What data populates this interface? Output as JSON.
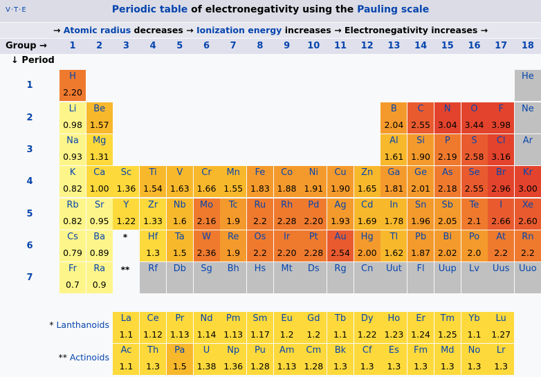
{
  "nav": {
    "v": "V",
    "t": "T",
    "e": "E"
  },
  "title": {
    "link": "Periodic table",
    "rest": " of electronegativity using the ",
    "link2": "Pauling scale"
  },
  "subtitle": {
    "a1": "→ ",
    "atomic": "Atomic radius",
    "a2": " decreases → ",
    "ion": "Ionization energy",
    "a3": " increases → Electronegativity increases →"
  },
  "group_label": "Group →",
  "groups": [
    "1",
    "2",
    "3",
    "4",
    "5",
    "6",
    "7",
    "8",
    "9",
    "10",
    "11",
    "12",
    "13",
    "14",
    "15",
    "16",
    "17",
    "18"
  ],
  "period_label": "↓ Period",
  "periods": [
    "1",
    "2",
    "3",
    "4",
    "5",
    "6",
    "7"
  ],
  "colors": {
    "header_bg": "#dcdce6",
    "lowest": "#fef58a",
    "low": "#fdd93c",
    "mid": "#f8b82c",
    "midhigh": "#f49a2c",
    "high": "#ef7a2e",
    "higher": "#e95b2f",
    "highest": "#e3432c",
    "none": "#c0c0c0"
  },
  "elements": [
    [
      "H",
      "2.20",
      1,
      1
    ],
    [
      "He",
      "",
      1,
      18
    ],
    [
      "Li",
      "0.98",
      2,
      1
    ],
    [
      "Be",
      "1.57",
      2,
      2
    ],
    [
      "B",
      "2.04",
      2,
      13
    ],
    [
      "C",
      "2.55",
      2,
      14
    ],
    [
      "N",
      "3.04",
      2,
      15
    ],
    [
      "O",
      "3.44",
      2,
      16
    ],
    [
      "F",
      "3.98",
      2,
      17
    ],
    [
      "Ne",
      "",
      2,
      18
    ],
    [
      "Na",
      "0.93",
      3,
      1
    ],
    [
      "Mg",
      "1.31",
      3,
      2
    ],
    [
      "Al",
      "1.61",
      3,
      13
    ],
    [
      "Si",
      "1.90",
      3,
      14
    ],
    [
      "P",
      "2.19",
      3,
      15
    ],
    [
      "S",
      "2.58",
      3,
      16
    ],
    [
      "Cl",
      "3.16",
      3,
      17
    ],
    [
      "Ar",
      "",
      3,
      18
    ],
    [
      "K",
      "0.82",
      4,
      1
    ],
    [
      "Ca",
      "1.00",
      4,
      2
    ],
    [
      "Sc",
      "1.36",
      4,
      3
    ],
    [
      "Ti",
      "1.54",
      4,
      4
    ],
    [
      "V",
      "1.63",
      4,
      5
    ],
    [
      "Cr",
      "1.66",
      4,
      6
    ],
    [
      "Mn",
      "1.55",
      4,
      7
    ],
    [
      "Fe",
      "1.83",
      4,
      8
    ],
    [
      "Co",
      "1.88",
      4,
      9
    ],
    [
      "Ni",
      "1.91",
      4,
      10
    ],
    [
      "Cu",
      "1.90",
      4,
      11
    ],
    [
      "Zn",
      "1.65",
      4,
      12
    ],
    [
      "Ga",
      "1.81",
      4,
      13
    ],
    [
      "Ge",
      "2.01",
      4,
      14
    ],
    [
      "As",
      "2.18",
      4,
      15
    ],
    [
      "Se",
      "2.55",
      4,
      16
    ],
    [
      "Br",
      "2.96",
      4,
      17
    ],
    [
      "Kr",
      "3.00",
      4,
      18
    ],
    [
      "Rb",
      "0.82",
      5,
      1
    ],
    [
      "Sr",
      "0.95",
      5,
      2
    ],
    [
      "Y",
      "1.22",
      5,
      3
    ],
    [
      "Zr",
      "1.33",
      5,
      4
    ],
    [
      "Nb",
      "1.6",
      5,
      5
    ],
    [
      "Mo",
      "2.16",
      5,
      6
    ],
    [
      "Tc",
      "1.9",
      5,
      7
    ],
    [
      "Ru",
      "2.2",
      5,
      8
    ],
    [
      "Rh",
      "2.28",
      5,
      9
    ],
    [
      "Pd",
      "2.20",
      5,
      10
    ],
    [
      "Ag",
      "1.93",
      5,
      11
    ],
    [
      "Cd",
      "1.69",
      5,
      12
    ],
    [
      "In",
      "1.78",
      5,
      13
    ],
    [
      "Sn",
      "1.96",
      5,
      14
    ],
    [
      "Sb",
      "2.05",
      5,
      15
    ],
    [
      "Te",
      "2.1",
      5,
      16
    ],
    [
      "I",
      "2.66",
      5,
      17
    ],
    [
      "Xe",
      "2.60",
      5,
      18
    ],
    [
      "Cs",
      "0.79",
      6,
      1
    ],
    [
      "Ba",
      "0.89",
      6,
      2
    ],
    [
      "Hf",
      "1.3",
      6,
      4
    ],
    [
      "Ta",
      "1.5",
      6,
      5
    ],
    [
      "W",
      "2.36",
      6,
      6
    ],
    [
      "Re",
      "1.9",
      6,
      7
    ],
    [
      "Os",
      "2.2",
      6,
      8
    ],
    [
      "Ir",
      "2.20",
      6,
      9
    ],
    [
      "Pt",
      "2.28",
      6,
      10
    ],
    [
      "Au",
      "2.54",
      6,
      11
    ],
    [
      "Hg",
      "2.00",
      6,
      12
    ],
    [
      "Tl",
      "1.62",
      6,
      13
    ],
    [
      "Pb",
      "1.87",
      6,
      14
    ],
    [
      "Bi",
      "2.02",
      6,
      15
    ],
    [
      "Po",
      "2.0",
      6,
      16
    ],
    [
      "At",
      "2.2",
      6,
      17
    ],
    [
      "Rn",
      "2.2",
      6,
      18
    ],
    [
      "Fr",
      "0.7",
      7,
      1
    ],
    [
      "Ra",
      "0.9",
      7,
      2
    ],
    [
      "Rf",
      "",
      7,
      4
    ],
    [
      "Db",
      "",
      7,
      5
    ],
    [
      "Sg",
      "",
      7,
      6
    ],
    [
      "Bh",
      "",
      7,
      7
    ],
    [
      "Hs",
      "",
      7,
      8
    ],
    [
      "Mt",
      "",
      7,
      9
    ],
    [
      "Ds",
      "",
      7,
      10
    ],
    [
      "Rg",
      "",
      7,
      11
    ],
    [
      "Cn",
      "",
      7,
      12
    ],
    [
      "Uut",
      "",
      7,
      13
    ],
    [
      "Fl",
      "",
      7,
      14
    ],
    [
      "Uup",
      "",
      7,
      15
    ],
    [
      "Lv",
      "",
      7,
      16
    ],
    [
      "Uus",
      "",
      7,
      17
    ],
    [
      "Uuo",
      "",
      7,
      18
    ]
  ],
  "markers": {
    "lanthanoid_marker": "*",
    "actinoid_marker": "**"
  },
  "lanthanoids": {
    "prefix": "* ",
    "label": "Lanthanoids",
    "items": [
      [
        "La",
        "1.1"
      ],
      [
        "Ce",
        "1.12"
      ],
      [
        "Pr",
        "1.13"
      ],
      [
        "Nd",
        "1.14"
      ],
      [
        "Pm",
        "1.13"
      ],
      [
        "Sm",
        "1.17"
      ],
      [
        "Eu",
        "1.2"
      ],
      [
        "Gd",
        "1.2"
      ],
      [
        "Tb",
        "1.1"
      ],
      [
        "Dy",
        "1.22"
      ],
      [
        "Ho",
        "1.23"
      ],
      [
        "Er",
        "1.24"
      ],
      [
        "Tm",
        "1.25"
      ],
      [
        "Yb",
        "1.1"
      ],
      [
        "Lu",
        "1.27"
      ]
    ]
  },
  "actinoids": {
    "prefix": "** ",
    "label": "Actinoids",
    "items": [
      [
        "Ac",
        "1.1"
      ],
      [
        "Th",
        "1.3"
      ],
      [
        "Pa",
        "1.5"
      ],
      [
        "U",
        "1.38"
      ],
      [
        "Np",
        "1.36"
      ],
      [
        "Pu",
        "1.28"
      ],
      [
        "Am",
        "1.13"
      ],
      [
        "Cm",
        "1.28"
      ],
      [
        "Bk",
        "1.3"
      ],
      [
        "Cf",
        "1.3"
      ],
      [
        "Es",
        "1.3"
      ],
      [
        "Fm",
        "1.3"
      ],
      [
        "Md",
        "1.3"
      ],
      [
        "No",
        "1.3"
      ],
      [
        "Lr",
        "1.3"
      ]
    ]
  }
}
